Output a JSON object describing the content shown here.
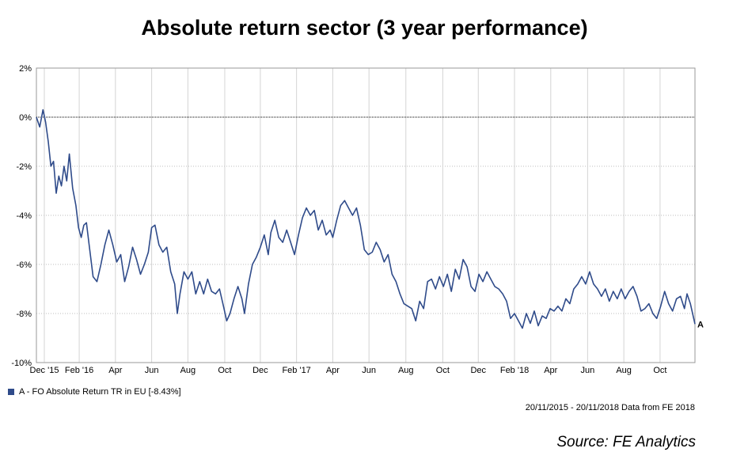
{
  "colors": {
    "series": "#2f4b8a",
    "grid": "#bdbdbd",
    "zero_line": "#000000"
  },
  "chart_data": {
    "type": "line",
    "title": "Absolute return sector (3 year performance)",
    "xlabel": "",
    "ylabel": "",
    "ylim": [
      -10,
      2
    ],
    "y_ticks": [
      2,
      0,
      -2,
      -4,
      -6,
      -8,
      -10
    ],
    "y_tick_labels": [
      "2%",
      "0%",
      "-2%",
      "-4%",
      "-6%",
      "-8%",
      "-10%"
    ],
    "x_ticks": [
      {
        "label": "Dec '15",
        "pos": 0.012
      },
      {
        "label": "Feb '16",
        "pos": 0.065
      },
      {
        "label": "Apr",
        "pos": 0.12
      },
      {
        "label": "Jun",
        "pos": 0.175
      },
      {
        "label": "Aug",
        "pos": 0.23
      },
      {
        "label": "Oct",
        "pos": 0.286
      },
      {
        "label": "Dec",
        "pos": 0.34
      },
      {
        "label": "Feb '17",
        "pos": 0.395
      },
      {
        "label": "Apr",
        "pos": 0.45
      },
      {
        "label": "Jun",
        "pos": 0.505
      },
      {
        "label": "Aug",
        "pos": 0.561
      },
      {
        "label": "Oct",
        "pos": 0.617
      },
      {
        "label": "Dec",
        "pos": 0.671
      },
      {
        "label": "Feb '18",
        "pos": 0.726
      },
      {
        "label": "Apr",
        "pos": 0.781
      },
      {
        "label": "Jun",
        "pos": 0.837
      },
      {
        "label": "Aug",
        "pos": 0.892
      },
      {
        "label": "Oct",
        "pos": 0.947
      }
    ],
    "series": [
      {
        "name": "A - FO Absolute Return TR in EU [-8.43%]",
        "end_marker": "A",
        "points": [
          [
            0.0,
            0.0
          ],
          [
            0.005,
            -0.4
          ],
          [
            0.01,
            0.3
          ],
          [
            0.014,
            -0.2
          ],
          [
            0.018,
            -1.0
          ],
          [
            0.022,
            -2.0
          ],
          [
            0.026,
            -1.8
          ],
          [
            0.03,
            -3.1
          ],
          [
            0.034,
            -2.4
          ],
          [
            0.038,
            -2.8
          ],
          [
            0.042,
            -2.0
          ],
          [
            0.046,
            -2.6
          ],
          [
            0.05,
            -1.5
          ],
          [
            0.055,
            -2.9
          ],
          [
            0.06,
            -3.6
          ],
          [
            0.064,
            -4.5
          ],
          [
            0.068,
            -4.9
          ],
          [
            0.072,
            -4.4
          ],
          [
            0.076,
            -4.3
          ],
          [
            0.08,
            -5.2
          ],
          [
            0.086,
            -6.5
          ],
          [
            0.092,
            -6.7
          ],
          [
            0.098,
            -6.0
          ],
          [
            0.104,
            -5.2
          ],
          [
            0.11,
            -4.6
          ],
          [
            0.116,
            -5.2
          ],
          [
            0.122,
            -5.9
          ],
          [
            0.128,
            -5.6
          ],
          [
            0.134,
            -6.7
          ],
          [
            0.14,
            -6.1
          ],
          [
            0.146,
            -5.3
          ],
          [
            0.152,
            -5.8
          ],
          [
            0.158,
            -6.4
          ],
          [
            0.164,
            -6.0
          ],
          [
            0.17,
            -5.5
          ],
          [
            0.175,
            -4.5
          ],
          [
            0.18,
            -4.4
          ],
          [
            0.186,
            -5.2
          ],
          [
            0.192,
            -5.5
          ],
          [
            0.198,
            -5.3
          ],
          [
            0.204,
            -6.3
          ],
          [
            0.21,
            -6.8
          ],
          [
            0.214,
            -8.0
          ],
          [
            0.218,
            -7.2
          ],
          [
            0.224,
            -6.3
          ],
          [
            0.23,
            -6.6
          ],
          [
            0.236,
            -6.3
          ],
          [
            0.242,
            -7.2
          ],
          [
            0.248,
            -6.7
          ],
          [
            0.254,
            -7.2
          ],
          [
            0.26,
            -6.6
          ],
          [
            0.266,
            -7.1
          ],
          [
            0.272,
            -7.2
          ],
          [
            0.278,
            -7.0
          ],
          [
            0.284,
            -7.7
          ],
          [
            0.289,
            -8.3
          ],
          [
            0.294,
            -8.0
          ],
          [
            0.3,
            -7.4
          ],
          [
            0.306,
            -6.9
          ],
          [
            0.312,
            -7.4
          ],
          [
            0.316,
            -8.0
          ],
          [
            0.322,
            -6.8
          ],
          [
            0.328,
            -6.0
          ],
          [
            0.334,
            -5.7
          ],
          [
            0.34,
            -5.3
          ],
          [
            0.346,
            -4.8
          ],
          [
            0.352,
            -5.6
          ],
          [
            0.356,
            -4.7
          ],
          [
            0.362,
            -4.2
          ],
          [
            0.368,
            -4.9
          ],
          [
            0.374,
            -5.1
          ],
          [
            0.38,
            -4.6
          ],
          [
            0.386,
            -5.1
          ],
          [
            0.392,
            -5.6
          ],
          [
            0.398,
            -4.8
          ],
          [
            0.404,
            -4.1
          ],
          [
            0.41,
            -3.7
          ],
          [
            0.416,
            -4.0
          ],
          [
            0.422,
            -3.8
          ],
          [
            0.428,
            -4.6
          ],
          [
            0.434,
            -4.2
          ],
          [
            0.44,
            -4.8
          ],
          [
            0.446,
            -4.6
          ],
          [
            0.45,
            -4.9
          ],
          [
            0.456,
            -4.2
          ],
          [
            0.462,
            -3.6
          ],
          [
            0.468,
            -3.4
          ],
          [
            0.474,
            -3.7
          ],
          [
            0.48,
            -4.0
          ],
          [
            0.486,
            -3.7
          ],
          [
            0.492,
            -4.4
          ],
          [
            0.498,
            -5.4
          ],
          [
            0.504,
            -5.6
          ],
          [
            0.51,
            -5.5
          ],
          [
            0.516,
            -5.1
          ],
          [
            0.522,
            -5.4
          ],
          [
            0.528,
            -5.9
          ],
          [
            0.534,
            -5.6
          ],
          [
            0.54,
            -6.4
          ],
          [
            0.546,
            -6.7
          ],
          [
            0.552,
            -7.2
          ],
          [
            0.558,
            -7.6
          ],
          [
            0.564,
            -7.7
          ],
          [
            0.57,
            -7.8
          ],
          [
            0.576,
            -8.3
          ],
          [
            0.582,
            -7.5
          ],
          [
            0.588,
            -7.8
          ],
          [
            0.594,
            -6.7
          ],
          [
            0.6,
            -6.6
          ],
          [
            0.606,
            -7.0
          ],
          [
            0.612,
            -6.5
          ],
          [
            0.618,
            -6.9
          ],
          [
            0.624,
            -6.4
          ],
          [
            0.63,
            -7.1
          ],
          [
            0.636,
            -6.2
          ],
          [
            0.642,
            -6.6
          ],
          [
            0.648,
            -5.8
          ],
          [
            0.654,
            -6.1
          ],
          [
            0.66,
            -6.9
          ],
          [
            0.666,
            -7.1
          ],
          [
            0.672,
            -6.4
          ],
          [
            0.678,
            -6.7
          ],
          [
            0.684,
            -6.3
          ],
          [
            0.69,
            -6.6
          ],
          [
            0.696,
            -6.9
          ],
          [
            0.702,
            -7.0
          ],
          [
            0.708,
            -7.2
          ],
          [
            0.714,
            -7.5
          ],
          [
            0.72,
            -8.2
          ],
          [
            0.726,
            -8.0
          ],
          [
            0.732,
            -8.3
          ],
          [
            0.738,
            -8.6
          ],
          [
            0.744,
            -8.0
          ],
          [
            0.75,
            -8.4
          ],
          [
            0.756,
            -7.9
          ],
          [
            0.762,
            -8.5
          ],
          [
            0.768,
            -8.1
          ],
          [
            0.774,
            -8.2
          ],
          [
            0.78,
            -7.8
          ],
          [
            0.786,
            -7.9
          ],
          [
            0.792,
            -7.7
          ],
          [
            0.798,
            -7.9
          ],
          [
            0.804,
            -7.4
          ],
          [
            0.81,
            -7.6
          ],
          [
            0.816,
            -7.0
          ],
          [
            0.822,
            -6.8
          ],
          [
            0.828,
            -6.5
          ],
          [
            0.834,
            -6.8
          ],
          [
            0.84,
            -6.3
          ],
          [
            0.846,
            -6.8
          ],
          [
            0.852,
            -7.0
          ],
          [
            0.858,
            -7.3
          ],
          [
            0.864,
            -7.0
          ],
          [
            0.87,
            -7.5
          ],
          [
            0.876,
            -7.1
          ],
          [
            0.882,
            -7.4
          ],
          [
            0.888,
            -7.0
          ],
          [
            0.894,
            -7.4
          ],
          [
            0.9,
            -7.1
          ],
          [
            0.906,
            -6.9
          ],
          [
            0.912,
            -7.3
          ],
          [
            0.918,
            -7.9
          ],
          [
            0.924,
            -7.8
          ],
          [
            0.93,
            -7.6
          ],
          [
            0.936,
            -8.0
          ],
          [
            0.942,
            -8.2
          ],
          [
            0.948,
            -7.7
          ],
          [
            0.954,
            -7.1
          ],
          [
            0.96,
            -7.6
          ],
          [
            0.966,
            -7.9
          ],
          [
            0.972,
            -7.4
          ],
          [
            0.978,
            -7.3
          ],
          [
            0.984,
            -7.8
          ],
          [
            0.988,
            -7.2
          ],
          [
            0.993,
            -7.6
          ],
          [
            1.0,
            -8.43
          ]
        ]
      }
    ]
  },
  "legend": {
    "label": "A - FO Absolute Return TR in EU [-8.43%]"
  },
  "footnote": "20/11/2015 - 20/11/2018 Data from FE 2018",
  "source": "Source: FE Analytics"
}
